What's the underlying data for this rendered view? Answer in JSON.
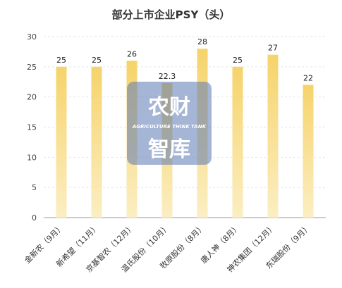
{
  "chart_data": {
    "type": "bar",
    "title": "部分上市企业PSY（头）",
    "categories": [
      "金新农（9月）",
      "新希望（11月）",
      "京基智农（12月）",
      "温氏股份（10月）",
      "牧原股份（8月）",
      "唐人神（8月）",
      "神农集团（12月）",
      "东瑞股份（9月）"
    ],
    "values": [
      25,
      25,
      26,
      22.3,
      28,
      25,
      27,
      22
    ],
    "value_labels": [
      "25",
      "25",
      "26",
      "22.3",
      "28",
      "25",
      "27",
      "22"
    ],
    "ylim": [
      0,
      30
    ],
    "yticks": [
      "0",
      "5",
      "10",
      "15",
      "20",
      "25",
      "30"
    ],
    "grid": true,
    "bar_color_top": "#f6d36b",
    "bar_color_bottom": "#fbeec2"
  },
  "watermark": {
    "line1": "农财",
    "line2": "智库",
    "tagline": "AGRICULTURE THINK TANK",
    "color": "#5b78b4"
  }
}
